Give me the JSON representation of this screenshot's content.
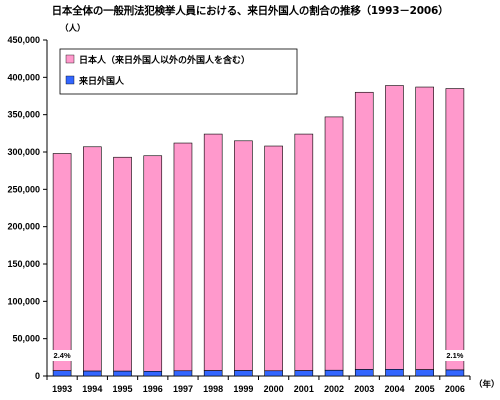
{
  "chart_data": {
    "type": "bar",
    "stacked": true,
    "title": "日本全体の一般刑法犯検挙人員における、来日外国人の割合の推移（1993－2006）",
    "y_unit_label": "（人）",
    "x_unit_label": "（年）",
    "ylim": [
      0,
      450000
    ],
    "y_ticks": [
      "0",
      "50,000",
      "100,000",
      "150,000",
      "200,000",
      "250,000",
      "300,000",
      "350,000",
      "400,000",
      "450,000"
    ],
    "categories": [
      "1993",
      "1994",
      "1995",
      "1996",
      "1997",
      "1998",
      "1999",
      "2000",
      "2001",
      "2002",
      "2003",
      "2004",
      "2005",
      "2006"
    ],
    "series": [
      {
        "name": "来日外国人",
        "color": "#3366ff",
        "values": [
          7100,
          6600,
          6500,
          6300,
          7000,
          7200,
          7300,
          7000,
          7200,
          7700,
          8700,
          8900,
          8500,
          8100
        ]
      },
      {
        "name": "日本人（来日外国人以外の外国人を含む）",
        "color": "#ff99cc",
        "values": [
          290900,
          300400,
          286500,
          288700,
          305000,
          316800,
          307700,
          301000,
          316800,
          339300,
          371300,
          380100,
          378500,
          376900
        ]
      }
    ],
    "annotations": [
      {
        "category": "1993",
        "text": "2.4%"
      },
      {
        "category": "2006",
        "text": "2.1%"
      }
    ],
    "legend_position": "top-left",
    "grid": false
  }
}
